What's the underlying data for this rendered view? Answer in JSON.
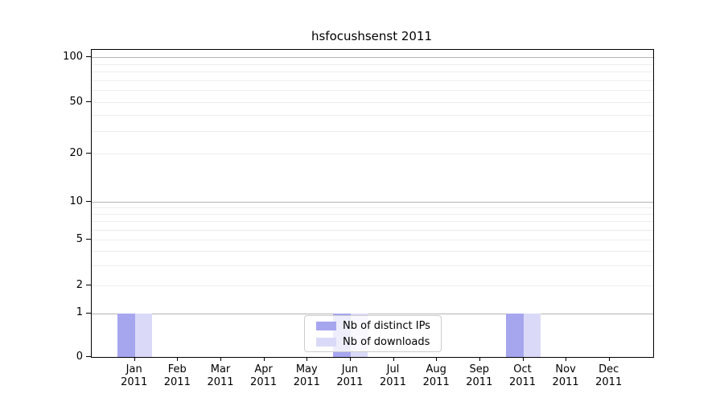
{
  "chart_data": {
    "type": "bar",
    "title": "hsfocushsenst 2011",
    "months": [
      "Jan",
      "Feb",
      "Mar",
      "Apr",
      "May",
      "Jun",
      "Jul",
      "Aug",
      "Sep",
      "Oct",
      "Nov",
      "Dec"
    ],
    "year_label": "2011",
    "categories": [
      "Jan 2011",
      "Feb 2011",
      "Mar 2011",
      "Apr 2011",
      "May 2011",
      "Jun 2011",
      "Jul 2011",
      "Aug 2011",
      "Sep 2011",
      "Oct 2011",
      "Nov 2011",
      "Dec 2011"
    ],
    "series": [
      {
        "name": "Nb of distinct IPs",
        "color": "#a6a6ef",
        "values": [
          1,
          0,
          0,
          0,
          0,
          1,
          0,
          0,
          0,
          1,
          0,
          0
        ]
      },
      {
        "name": "Nb of downloads",
        "color": "#dadaf8",
        "values": [
          1,
          0,
          0,
          0,
          0,
          1,
          0,
          0,
          0,
          1,
          0,
          0
        ]
      }
    ],
    "yticks": [
      0,
      1,
      2,
      5,
      10,
      20,
      50,
      100
    ],
    "yscale": "symlog",
    "ylim": [
      0,
      115
    ],
    "xlabel": "",
    "ylabel": "",
    "grid": "both",
    "legend_position": "lower-center",
    "accent_colors": {
      "major_grid": "#b3b3b3",
      "minor_grid": "#ededed",
      "axis": "#000000"
    }
  }
}
